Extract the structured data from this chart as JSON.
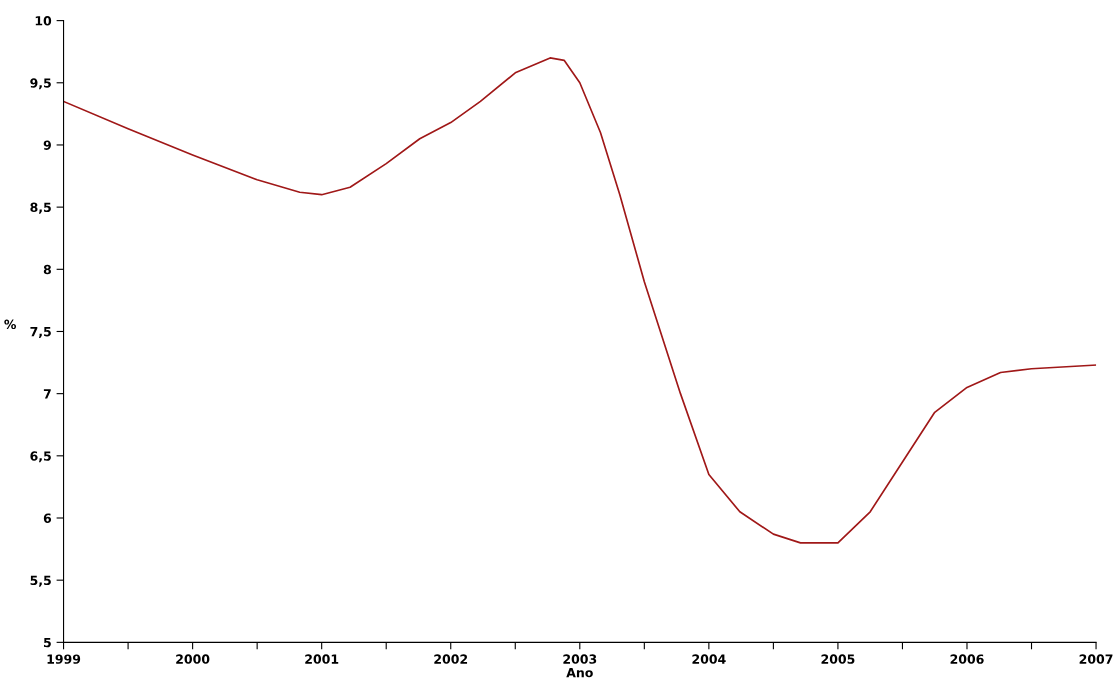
{
  "chart_data": {
    "type": "line",
    "xlabel": "Ano",
    "ylabel": "%",
    "x": [
      1999,
      1999.5,
      2000,
      2000.5,
      2000.83,
      2001,
      2001.22,
      2001.5,
      2001.76,
      2002,
      2002.23,
      2002.5,
      2002.77,
      2002.88,
      2003,
      2003.16,
      2003.31,
      2003.5,
      2003.78,
      2004,
      2004.24,
      2004.5,
      2004.71,
      2005,
      2005.25,
      2005.5,
      2005.75,
      2006,
      2006.26,
      2006.5,
      2007
    ],
    "series": [
      {
        "color": "#a01818",
        "values": [
          9.35,
          9.13,
          8.92,
          8.72,
          8.62,
          8.6,
          8.66,
          8.85,
          9.05,
          9.18,
          9.35,
          9.58,
          9.7,
          9.68,
          9.5,
          9.1,
          8.6,
          7.9,
          7.0,
          6.35,
          6.05,
          5.87,
          5.8,
          5.8,
          6.05,
          6.45,
          6.85,
          7.05,
          7.17,
          7.2,
          7.23
        ]
      }
    ],
    "xlim": [
      1999,
      2007
    ],
    "xticks": [
      1999,
      {
        "value": 1999.5,
        "label": null
      },
      2000,
      {
        "value": 2000.5,
        "label": null
      },
      2001,
      {
        "value": 2001.5,
        "label": null
      },
      2002,
      {
        "value": 2002.5,
        "label": null
      },
      2003,
      {
        "value": 2003.5,
        "label": null
      },
      2004,
      {
        "value": 2004.5,
        "label": null
      },
      2005,
      {
        "value": 2005.5,
        "label": null
      },
      2006,
      {
        "value": 2006.5,
        "label": null
      },
      2007
    ],
    "ylim": [
      5,
      10
    ],
    "yticks": [
      5,
      {
        "value": 5.5,
        "label": "5,5"
      },
      6,
      {
        "value": 6.5,
        "label": "6,5"
      },
      7,
      {
        "value": 7.5,
        "label": "7,5"
      },
      8,
      {
        "value": 8.5,
        "label": "8,5"
      },
      9,
      {
        "value": 9.5,
        "label": "9,5"
      },
      10
    ],
    "grid": false,
    "legend": false
  }
}
